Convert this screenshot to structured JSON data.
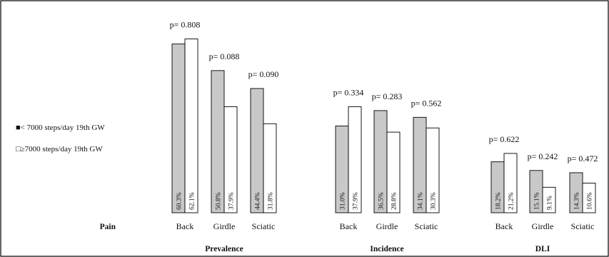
{
  "chart_data": {
    "type": "bar",
    "y_range": [
      0,
      100
    ],
    "grid": false,
    "legend_position": "left",
    "row_label": "Pain",
    "series": [
      {
        "name": "< 7000 steps/day 19th GW",
        "color": "#c8c8c8",
        "marker": "■"
      },
      {
        "name": "≥7000 steps/day 19th GW",
        "color": "#ffffff",
        "marker": "□"
      }
    ],
    "groups": [
      {
        "name": "Prevalence",
        "categories": [
          {
            "label": "Back",
            "p": "p= 0.808",
            "values": [
              60.3,
              62.1
            ],
            "value_labels": [
              "60.3%",
              "62.1%"
            ]
          },
          {
            "label": "Girdle",
            "p": "p= 0.088",
            "values": [
              50.8,
              37.9
            ],
            "value_labels": [
              "50.8%",
              "37.9%"
            ]
          },
          {
            "label": "Sciatic",
            "p": "p= 0.090",
            "values": [
              44.4,
              31.8
            ],
            "value_labels": [
              "44.4%",
              "31.8%"
            ]
          }
        ]
      },
      {
        "name": "Incidence",
        "categories": [
          {
            "label": "Back",
            "p": "p= 0.334",
            "values": [
              31.0,
              37.9
            ],
            "value_labels": [
              "31.0%",
              "37.9%"
            ]
          },
          {
            "label": "Girdle",
            "p": "p= 0.283",
            "values": [
              36.5,
              28.8
            ],
            "value_labels": [
              "36.5%",
              "28.8%"
            ]
          },
          {
            "label": "Sciatic",
            "p": "p= 0.562",
            "values": [
              34.1,
              30.3
            ],
            "value_labels": [
              "34.1%",
              "30.3%"
            ]
          }
        ]
      },
      {
        "name": "DLI",
        "categories": [
          {
            "label": "Back",
            "p": "p= 0.622",
            "values": [
              18.2,
              21.2
            ],
            "value_labels": [
              "18.2%",
              "21.2%"
            ]
          },
          {
            "label": "Girdle",
            "p": "p= 0.242",
            "values": [
              15.1,
              9.1
            ],
            "value_labels": [
              "15.1%",
              "9.1%"
            ]
          },
          {
            "label": "Sciatic",
            "p": "p= 0.472",
            "values": [
              14.3,
              10.6
            ],
            "value_labels": [
              "14.3%",
              "10.6%"
            ]
          }
        ]
      }
    ]
  }
}
